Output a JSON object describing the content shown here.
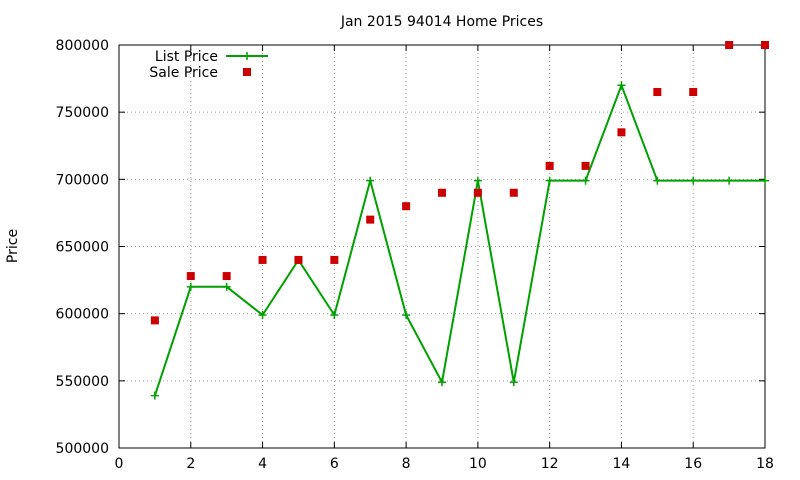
{
  "chart_data": {
    "type": "line",
    "title": "Jan 2015 94014 Home Prices",
    "xlabel": "",
    "ylabel": "Price",
    "xlim": [
      0,
      18
    ],
    "ylim": [
      500000,
      800000
    ],
    "x_ticks": [
      0,
      2,
      4,
      6,
      8,
      10,
      12,
      14,
      16,
      18
    ],
    "y_ticks": [
      500000,
      550000,
      600000,
      650000,
      700000,
      750000,
      800000
    ],
    "grid": true,
    "legend_position": "top-left",
    "series": [
      {
        "name": "List Price",
        "style": "line-with-plus-markers",
        "color": "#00a000",
        "x": [
          1,
          2,
          3,
          4,
          5,
          6,
          7,
          8,
          9,
          10,
          11,
          12,
          13,
          14,
          15,
          16,
          17,
          18
        ],
        "values": [
          539000,
          620000,
          620000,
          599000,
          640000,
          599000,
          699000,
          599000,
          549000,
          699000,
          549000,
          699000,
          699000,
          770000,
          699000,
          699000,
          699000,
          699000
        ]
      },
      {
        "name": "Sale Price",
        "style": "square-markers",
        "color": "#cc0000",
        "x": [
          1,
          2,
          3,
          4,
          5,
          6,
          7,
          8,
          9,
          10,
          11,
          12,
          13,
          14,
          15,
          16,
          17,
          18
        ],
        "values": [
          595000,
          628000,
          628000,
          640000,
          640000,
          640000,
          670000,
          680000,
          690000,
          690000,
          690000,
          710000,
          710000,
          735000,
          765000,
          765000,
          800000,
          800000
        ]
      }
    ]
  }
}
